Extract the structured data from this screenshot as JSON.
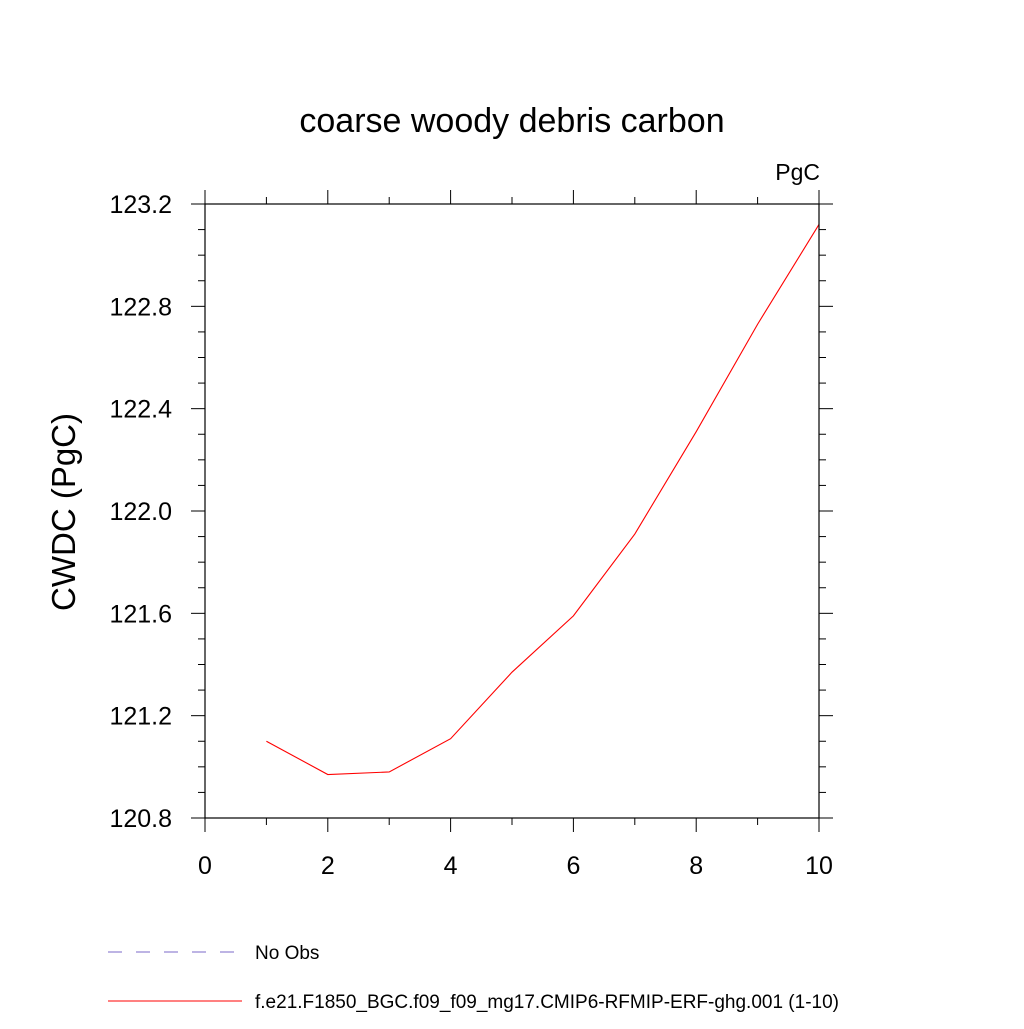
{
  "chart_data": {
    "type": "line",
    "title": "coarse woody debris carbon",
    "units_label": "PgC",
    "ylabel": "CWDC  (PgC)",
    "xlabel": "",
    "xlim": [
      0,
      10
    ],
    "ylim": [
      120.8,
      123.2
    ],
    "x_ticks": [
      0,
      2,
      4,
      6,
      8,
      10
    ],
    "x_tick_labels": [
      "0",
      "2",
      "4",
      "6",
      "8",
      "10"
    ],
    "y_ticks": [
      120.8,
      121.2,
      121.6,
      122.0,
      122.4,
      122.8,
      123.2
    ],
    "y_tick_labels": [
      "120.8",
      "121.2",
      "121.6",
      "122.0",
      "122.4",
      "122.8",
      "123.2"
    ],
    "x_minor_step": 1,
    "y_minor_step": 0.1,
    "grid": false,
    "legend_position": "bottom-left, below plot",
    "series": [
      {
        "name": "f.e21.F1850_BGC.f09_f09_mg17.CMIP6-RFMIP-ERF-ghg.001 (1-10)",
        "color": "#ff0000",
        "style": "solid",
        "x": [
          1,
          2,
          3,
          4,
          5,
          6,
          7,
          8,
          9,
          10
        ],
        "y": [
          121.1,
          120.97,
          120.98,
          121.11,
          121.37,
          121.59,
          121.91,
          122.31,
          122.73,
          123.12
        ]
      }
    ],
    "legend": [
      {
        "label": "No Obs",
        "color": "#7b68c8",
        "style": "dashed"
      },
      {
        "label": "f.e21.F1850_BGC.f09_f09_mg17.CMIP6-RFMIP-ERF-ghg.001 (1-10)",
        "color": "#ff0000",
        "style": "solid"
      }
    ]
  }
}
